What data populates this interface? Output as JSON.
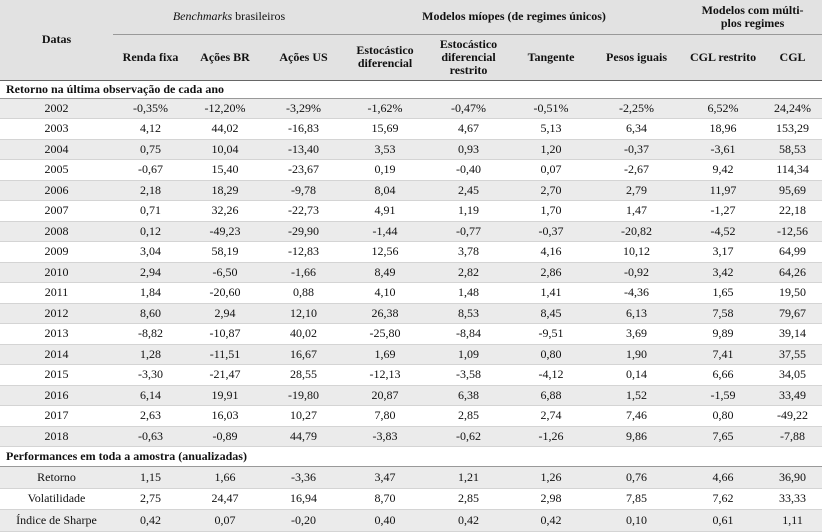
{
  "header": {
    "corner": "Datas",
    "groups": [
      {
        "italic": "Benchmarks",
        "text": "brasileiros"
      },
      {
        "text": "Modelos míopes (de regimes únicos)"
      },
      {
        "lines": [
          "Modelos com múlti-",
          "plos regimes"
        ]
      }
    ],
    "columns": [
      [
        "Renda fixa"
      ],
      [
        "Ações BR"
      ],
      [
        "Ações US"
      ],
      [
        "Estocástico",
        "diferencial"
      ],
      [
        "Estocástico",
        "diferencial",
        "restrito"
      ],
      [
        "Tangente"
      ],
      [
        "Pesos iguais"
      ],
      [
        "CGL restrito"
      ],
      [
        "CGL"
      ]
    ]
  },
  "sections": [
    {
      "title": "Retorno na última observação de cada ano",
      "rows": [
        {
          "label": "2002",
          "values": [
            "-0,35%",
            "-12,20%",
            "-3,29%",
            "-1,62%",
            "-0,47%",
            "-0,51%",
            "-2,25%",
            "6,52%",
            "24,24%"
          ]
        },
        {
          "label": "2003",
          "values": [
            "4,12",
            "44,02",
            "-16,83",
            "15,69",
            "4,67",
            "5,13",
            "6,34",
            "18,96",
            "153,29"
          ]
        },
        {
          "label": "2004",
          "values": [
            "0,75",
            "10,04",
            "-13,40",
            "3,53",
            "0,93",
            "1,20",
            "-0,37",
            "-3,61",
            "58,53"
          ]
        },
        {
          "label": "2005",
          "values": [
            "-0,67",
            "15,40",
            "-23,67",
            "0,19",
            "-0,40",
            "0,07",
            "-2,67",
            "9,42",
            "114,34"
          ]
        },
        {
          "label": "2006",
          "values": [
            "2,18",
            "18,29",
            "-9,78",
            "8,04",
            "2,45",
            "2,70",
            "2,79",
            "11,97",
            "95,69"
          ]
        },
        {
          "label": "2007",
          "values": [
            "0,71",
            "32,26",
            "-22,73",
            "4,91",
            "1,19",
            "1,70",
            "1,47",
            "-1,27",
            "22,18"
          ]
        },
        {
          "label": "2008",
          "values": [
            "0,12",
            "-49,23",
            "-29,90",
            "-1,44",
            "-0,77",
            "-0,37",
            "-20,82",
            "-4,52",
            "-12,56"
          ]
        },
        {
          "label": "2009",
          "values": [
            "3,04",
            "58,19",
            "-12,83",
            "12,56",
            "3,78",
            "4,16",
            "10,12",
            "3,17",
            "64,99"
          ]
        },
        {
          "label": "2010",
          "values": [
            "2,94",
            "-6,50",
            "-1,66",
            "8,49",
            "2,82",
            "2,86",
            "-0,92",
            "3,42",
            "64,26"
          ]
        },
        {
          "label": "2011",
          "values": [
            "1,84",
            "-20,60",
            "0,88",
            "4,10",
            "1,48",
            "1,41",
            "-4,36",
            "1,65",
            "19,50"
          ]
        },
        {
          "label": "2012",
          "values": [
            "8,60",
            "2,94",
            "12,10",
            "26,38",
            "8,53",
            "8,45",
            "6,13",
            "7,58",
            "79,67"
          ]
        },
        {
          "label": "2013",
          "values": [
            "-8,82",
            "-10,87",
            "40,02",
            "-25,80",
            "-8,84",
            "-9,51",
            "3,69",
            "9,89",
            "39,14"
          ]
        },
        {
          "label": "2014",
          "values": [
            "1,28",
            "-11,51",
            "16,67",
            "1,69",
            "1,09",
            "0,80",
            "1,90",
            "7,41",
            "37,55"
          ]
        },
        {
          "label": "2015",
          "values": [
            "-3,30",
            "-21,47",
            "28,55",
            "-12,13",
            "-3,58",
            "-4,12",
            "0,14",
            "6,66",
            "34,05"
          ]
        },
        {
          "label": "2016",
          "values": [
            "6,14",
            "19,91",
            "-19,80",
            "20,87",
            "6,38",
            "6,88",
            "1,52",
            "-1,59",
            "33,49"
          ]
        },
        {
          "label": "2017",
          "values": [
            "2,63",
            "16,03",
            "10,27",
            "7,80",
            "2,85",
            "2,74",
            "7,46",
            "0,80",
            "-49,22"
          ]
        },
        {
          "label": "2018",
          "values": [
            "-0,63",
            "-0,89",
            "44,79",
            "-3,83",
            "-0,62",
            "-1,26",
            "9,86",
            "7,65",
            "-7,88"
          ]
        }
      ]
    },
    {
      "title": "Performances em toda a amostra (anualizadas)",
      "rows": [
        {
          "label": "Retorno",
          "values": [
            "1,15",
            "1,66",
            "-3,36",
            "3,47",
            "1,21",
            "1,26",
            "0,76",
            "4,66",
            "36,90"
          ]
        },
        {
          "label": "Volatilidade",
          "values": [
            "2,75",
            "24,47",
            "16,94",
            "8,70",
            "2,85",
            "2,98",
            "7,85",
            "7,62",
            "33,33"
          ]
        },
        {
          "label": "Índice de Sharpe",
          "values": [
            "0,42",
            "0,07",
            "-0,20",
            "0,40",
            "0,42",
            "0,42",
            "0,10",
            "0,61",
            "1,11"
          ]
        }
      ]
    }
  ]
}
